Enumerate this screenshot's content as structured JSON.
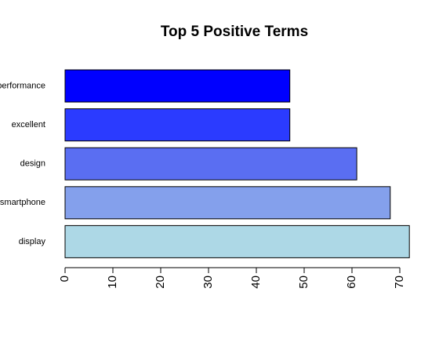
{
  "chart_data": {
    "type": "barh",
    "title": "Top 5 Positive Terms",
    "categories": [
      "performance",
      "excellent",
      "design",
      "smartphone",
      "display"
    ],
    "values": [
      47,
      47,
      61,
      68,
      72
    ],
    "colors": [
      "#0000ff",
      "#2b3bff",
      "#5a6ef2",
      "#84a0ec",
      "#add8e6"
    ],
    "xlim": [
      0,
      70
    ],
    "xticks": [
      0,
      10,
      20,
      30,
      40,
      50,
      60,
      70
    ]
  }
}
